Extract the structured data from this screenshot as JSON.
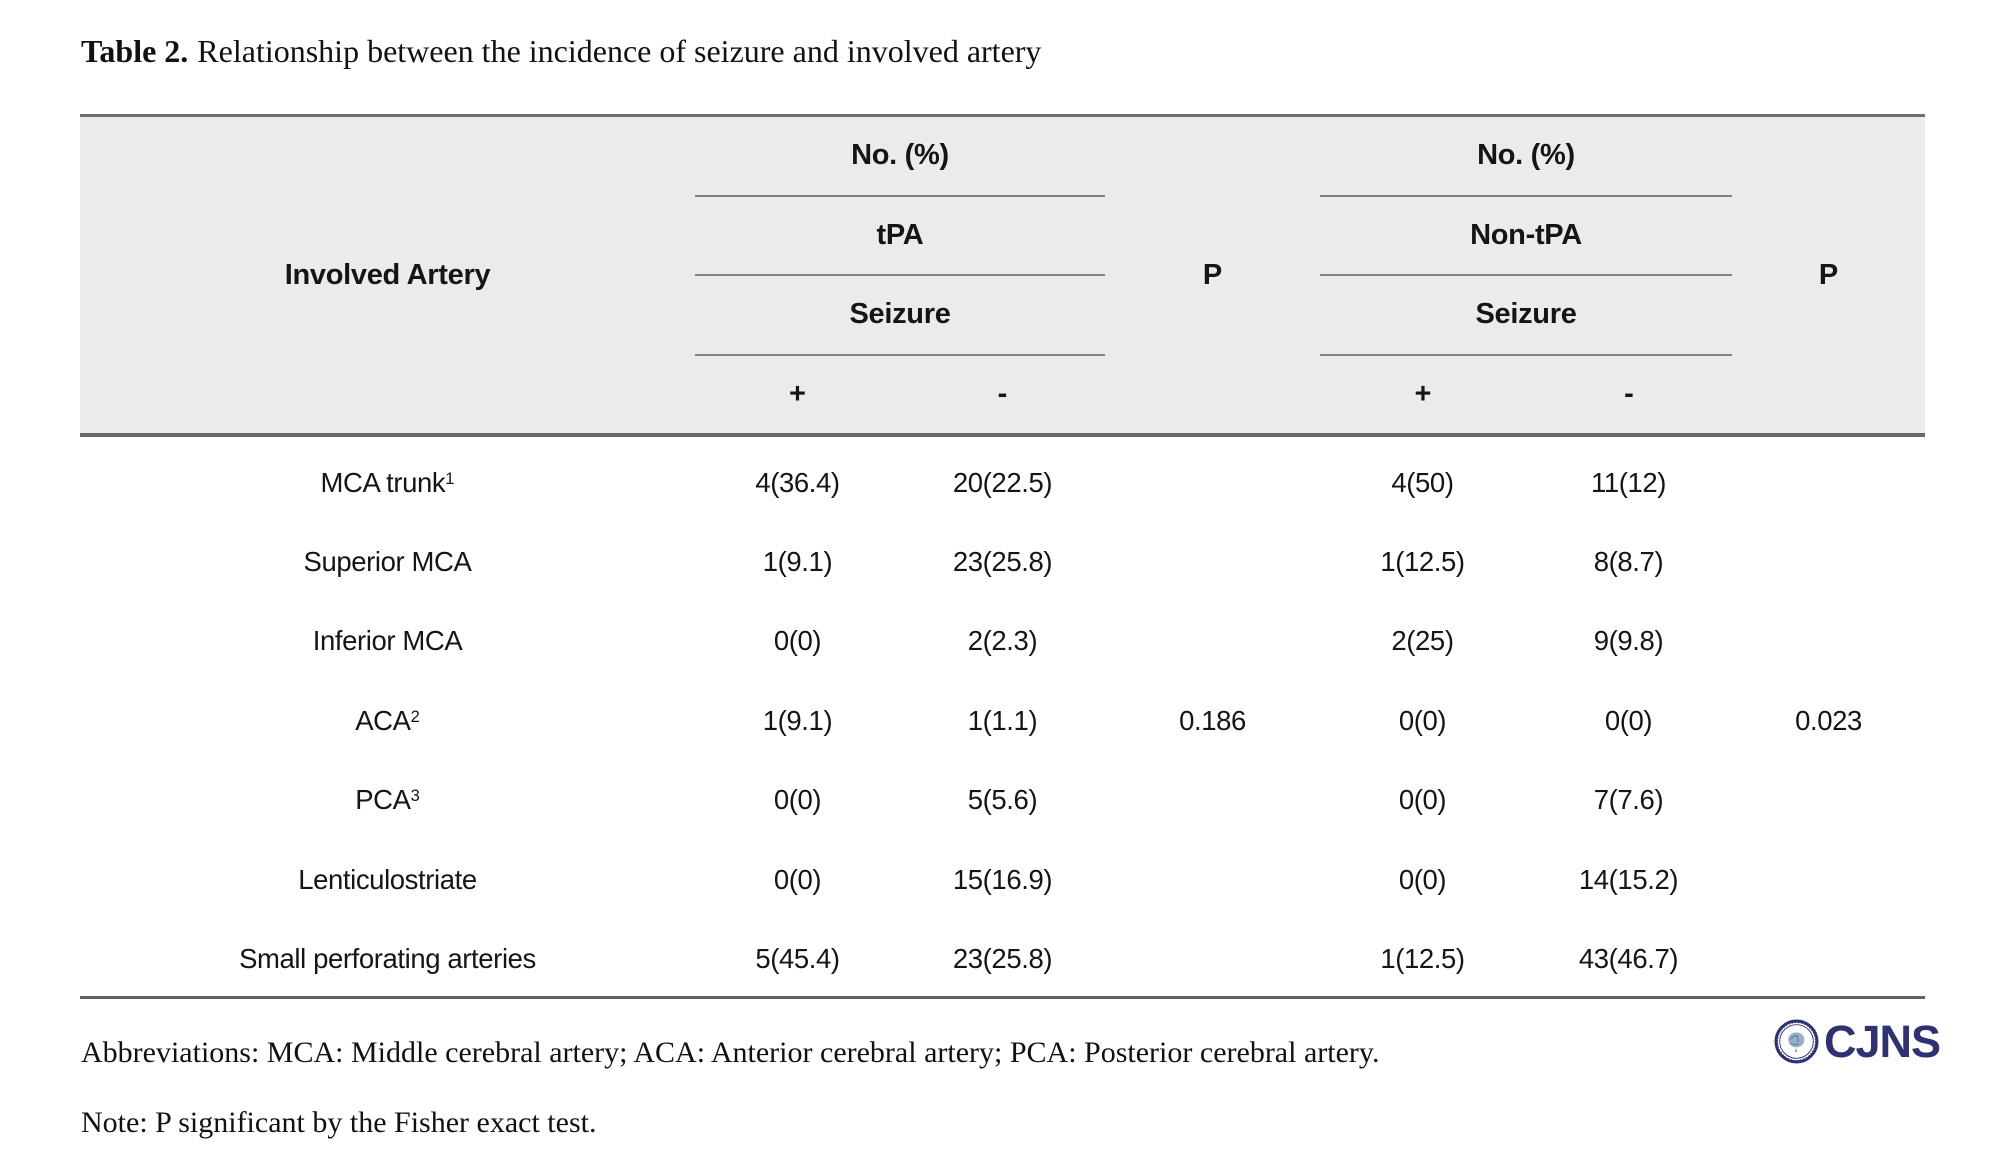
{
  "title": {
    "label": "Table 2.",
    "text": "Relationship between the incidence of seizure and involved artery"
  },
  "table": {
    "col1_header": "Involved Artery",
    "p_header_1": "P",
    "p_header_2": "P",
    "groups": [
      {
        "no_pct": "No. (%)",
        "treatment": "tPA",
        "seizure": "Seizure",
        "plus": "+",
        "minus": "-"
      },
      {
        "no_pct": "No. (%)",
        "treatment": "Non-tPA",
        "seizure": "Seizure",
        "plus": "+",
        "minus": "-"
      }
    ],
    "rows": [
      {
        "artery": "MCA trunk",
        "sup": "1",
        "tpa_plus": "4(36.4)",
        "tpa_minus": "20(22.5)",
        "p": "",
        "non_plus": "4(50)",
        "non_minus": "11(12)",
        "p2": ""
      },
      {
        "artery": "Superior MCA",
        "sup": "",
        "tpa_plus": "1(9.1)",
        "tpa_minus": "23(25.8)",
        "p": "",
        "non_plus": "1(12.5)",
        "non_minus": "8(8.7)",
        "p2": ""
      },
      {
        "artery": "Inferior MCA",
        "sup": "",
        "tpa_plus": "0(0)",
        "tpa_minus": "2(2.3)",
        "p": "",
        "non_plus": "2(25)",
        "non_minus": "9(9.8)",
        "p2": ""
      },
      {
        "artery": "ACA",
        "sup": "2",
        "tpa_plus": "1(9.1)",
        "tpa_minus": "1(1.1)",
        "p": "0.186",
        "non_plus": "0(0)",
        "non_minus": "0(0)",
        "p2": "0.023"
      },
      {
        "artery": "PCA",
        "sup": "3",
        "tpa_plus": "0(0)",
        "tpa_minus": "5(5.6)",
        "p": "",
        "non_plus": "0(0)",
        "non_minus": "7(7.6)",
        "p2": ""
      },
      {
        "artery": "Lenticulostriate",
        "sup": "",
        "tpa_plus": "0(0)",
        "tpa_minus": "15(16.9)",
        "p": "",
        "non_plus": "0(0)",
        "non_minus": "14(15.2)",
        "p2": ""
      },
      {
        "artery": "Small perforating arteries",
        "sup": "",
        "tpa_plus": "5(45.4)",
        "tpa_minus": "23(25.8)",
        "p": "",
        "non_plus": "1(12.5)",
        "non_minus": "43(46.7)",
        "p2": ""
      }
    ]
  },
  "footer": {
    "abbreviations": "Abbreviations: MCA: Middle cerebral artery; ACA: Anterior cerebral artery; PCA: Posterior cerebral artery.",
    "note": "Note: P significant by the Fisher exact test.",
    "logo_text": "CJNS"
  },
  "colors": {
    "header_bg": "#eaebec",
    "rule_gray": "#7e8083",
    "border_top": "#6d6e70",
    "border_dark": "#67696c",
    "border_bottom": "#606265",
    "logo_navy": "#2e3174"
  }
}
